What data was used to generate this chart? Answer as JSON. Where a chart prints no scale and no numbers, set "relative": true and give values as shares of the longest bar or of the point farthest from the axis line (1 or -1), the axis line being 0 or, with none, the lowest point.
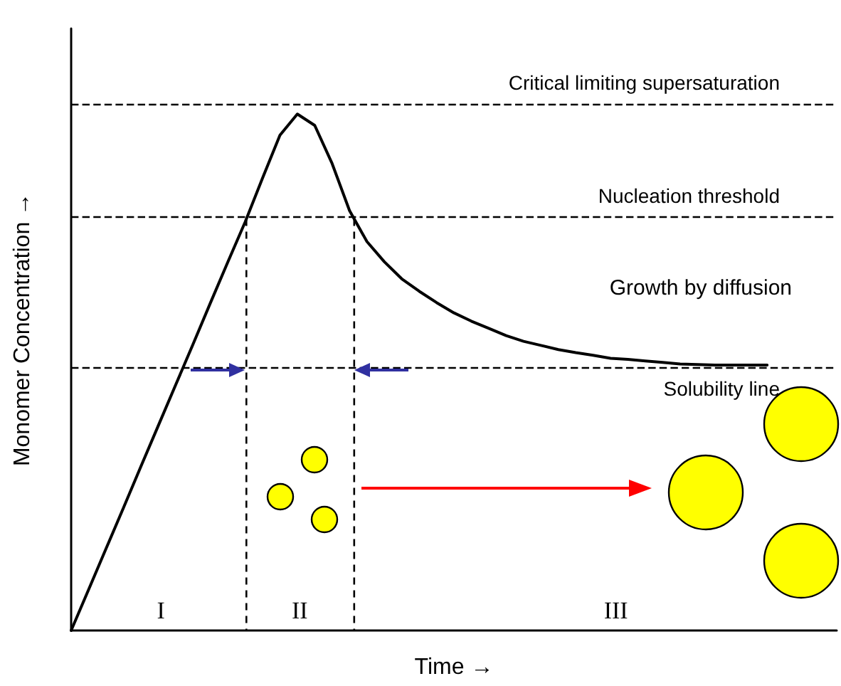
{
  "chart_data": {
    "type": "line",
    "relative": true,
    "xlabel": "Time →",
    "ylabel": "Monomer Concentration →",
    "marker": "none",
    "line_style": "solid",
    "categories": [
      null,
      null,
      null,
      null,
      null,
      null,
      null,
      null,
      null,
      null,
      null,
      null,
      null,
      null,
      null,
      null,
      null,
      null,
      null,
      null,
      null,
      null,
      null,
      null,
      null,
      null,
      null,
      null,
      null,
      null,
      null,
      null,
      null,
      null,
      null,
      null,
      null,
      null,
      null,
      null,
      null,
      null,
      null,
      null,
      null
    ],
    "series": [
      {
        "color": "#000000",
        "values": [
          0,
          0.079,
          0.158,
          0.237,
          0.317,
          0.396,
          0.475,
          0.554,
          0.634,
          0.713,
          0.791,
          0.876,
          0.959,
          1,
          0.978,
          0.904,
          0.813,
          0.753,
          0.714,
          0.681,
          0.657,
          0.635,
          0.615,
          0.599,
          0.585,
          0.571,
          0.56,
          0.552,
          0.544,
          0.538,
          0.533,
          0.527,
          0.525,
          0.522,
          0.519,
          0.516,
          0.515,
          0.514,
          0.514,
          0.514,
          0.514,
          null,
          null,
          null,
          null
        ]
      }
    ],
    "ref_lines": [
      {
        "axis": "y",
        "value": 1.019,
        "label": "Critical limiting supersaturation",
        "line_style": "dashed",
        "color": "#000000"
      },
      {
        "axis": "y",
        "value": 0.797,
        "label": "Nucleation threshold",
        "line_style": "dashed",
        "color": "#000000"
      },
      {
        "axis": "y",
        "value": 0.508,
        "label": "Solubility line",
        "line_style": "dashed",
        "color": "#000000"
      }
    ],
    "annotations": [
      "Growth by diffusion",
      "I",
      "II",
      "III"
    ]
  }
}
